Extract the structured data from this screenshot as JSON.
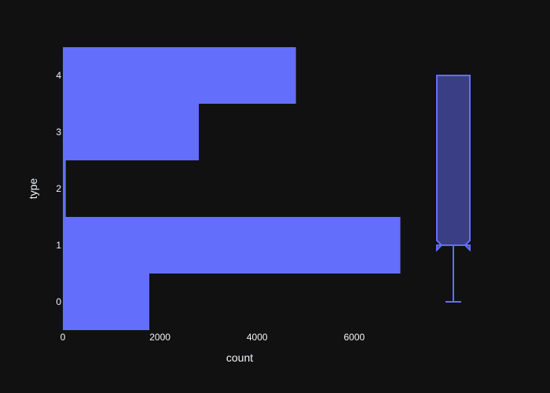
{
  "chart_data": [
    {
      "type": "bar",
      "orientation": "horizontal",
      "categories": [
        "0",
        "1",
        "2",
        "3",
        "4"
      ],
      "values": [
        1780,
        6950,
        60,
        2800,
        4800
      ],
      "xlabel": "count",
      "ylabel": "type",
      "xticks": [
        "0",
        "2000",
        "4000",
        "6000"
      ],
      "xlim": [
        0,
        7200
      ],
      "ylim": [
        -0.5,
        4.5
      ],
      "grid": false,
      "color": "#636efa",
      "background": "#111111"
    },
    {
      "type": "box",
      "notched": true,
      "shares_y_axis": "type",
      "min": 0,
      "q1": 1,
      "median": 1,
      "q3": 4,
      "max": 4,
      "color": "#636efa"
    }
  ]
}
